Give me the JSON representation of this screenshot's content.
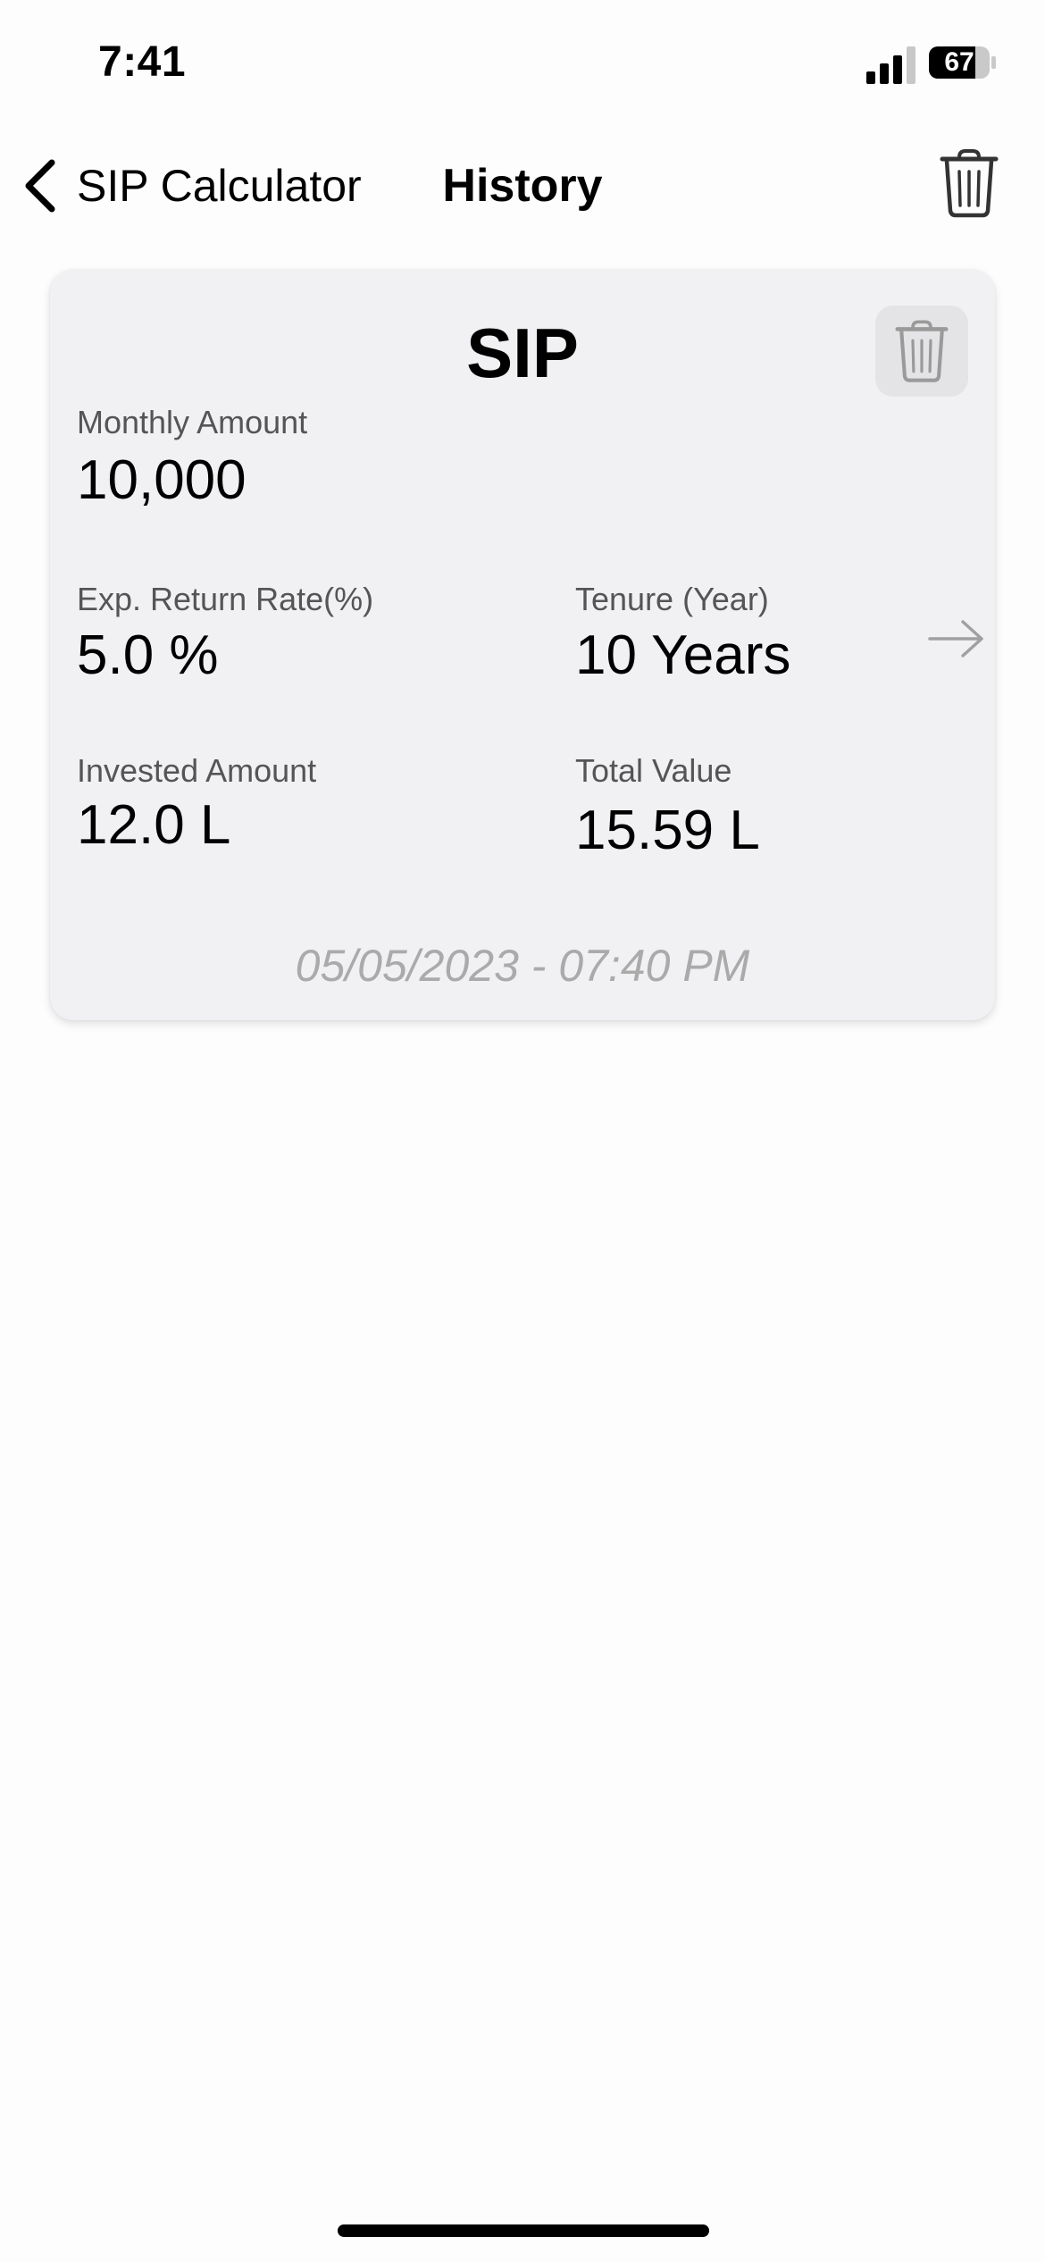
{
  "status_bar": {
    "time": "7:41",
    "battery_level": "67"
  },
  "nav": {
    "back_label": "SIP Calculator",
    "title": "History",
    "clear_icon": "trash-icon"
  },
  "history": [
    {
      "title": "SIP",
      "monthly_amount_label": "Monthly Amount",
      "monthly_amount": "10,000",
      "return_rate_label": "Exp. Return Rate(%)",
      "return_rate": "5.0 %",
      "tenure_label": "Tenure (Year)",
      "tenure": "10 Years",
      "invested_label": "Invested Amount",
      "invested": "12.0 L",
      "total_label": "Total Value",
      "total": "15.59 L",
      "date": "05/05/2023 - 07:40 PM"
    }
  ]
}
